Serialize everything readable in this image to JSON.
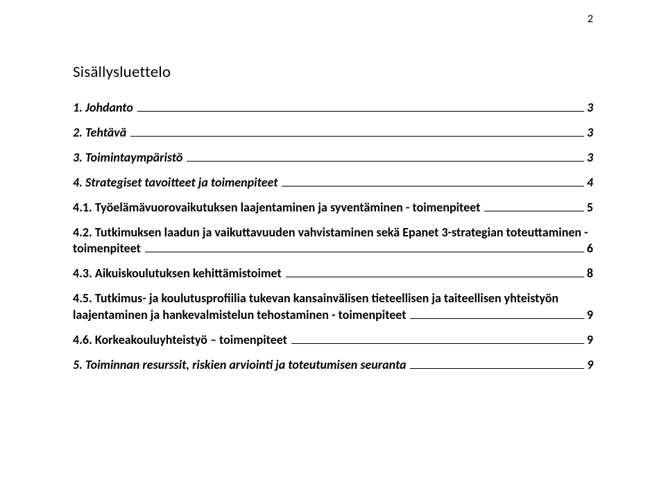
{
  "page_number": "2",
  "heading": "Sisällysluettelo",
  "toc": [
    {
      "level": 1,
      "title": "1. Johdanto",
      "page": "3"
    },
    {
      "level": 1,
      "title": "2. Tehtävä",
      "page": "3"
    },
    {
      "level": 1,
      "title": "3. Toimintaympäristö",
      "page": "3"
    },
    {
      "level": 1,
      "title": "4. Strategiset tavoitteet ja toimenpiteet",
      "page": "4"
    },
    {
      "level": 2,
      "title": "4.1. Työelämävuorovaikutuksen laajentaminen ja syventäminen - toimenpiteet",
      "page": "5"
    },
    {
      "level": 2,
      "multiline": true,
      "line1": "4.2. Tutkimuksen laadun ja vaikuttavuuden vahvistaminen sekä Epanet 3-strategian toteuttaminen -",
      "line2": "toimenpiteet",
      "page": "6"
    },
    {
      "level": 2,
      "title": "4.3. Aikuiskoulutuksen kehittämistoimet",
      "page": "8"
    },
    {
      "level": 2,
      "multiline": true,
      "line1": "4.5. Tutkimus- ja koulutusprofiilia tukevan kansainvälisen tieteellisen ja taiteellisen yhteistyön",
      "line2": "laajentaminen ja hankevalmistelun tehostaminen - toimenpiteet",
      "page": "9"
    },
    {
      "level": 2,
      "title": "4.6. Korkeakouluyhteistyö – toimenpiteet",
      "page": "9"
    },
    {
      "level": 1,
      "title": "5. Toiminnan resurssit, riskien arviointi ja toteutumisen seuranta",
      "page": "9"
    }
  ]
}
